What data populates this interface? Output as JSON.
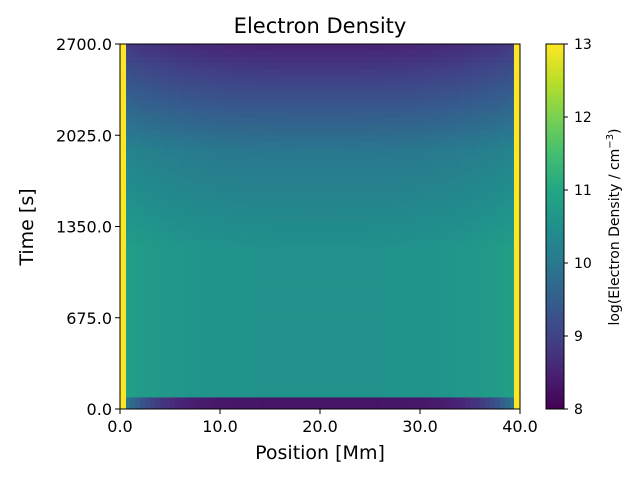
{
  "chart_data": {
    "type": "heatmap",
    "title": "Electron Density",
    "xlabel": "Position [Mm]",
    "ylabel": "Time [s]",
    "xlim": [
      0.0,
      40.0
    ],
    "ylim": [
      0.0,
      2700.0
    ],
    "x_ticks": [
      "0.0",
      "10.0",
      "20.0",
      "30.0",
      "40.0"
    ],
    "x_tick_values": [
      0,
      10,
      20,
      30,
      40
    ],
    "y_ticks": [
      "0.0",
      "675.0",
      "1350.0",
      "2025.0",
      "2700.0"
    ],
    "y_tick_values": [
      0,
      675,
      1350,
      2025,
      2700
    ],
    "colorbar": {
      "label_prefix": "log(Electron Density / cm",
      "label_sup": "−3",
      "label_suffix": ")",
      "range": [
        8,
        13
      ],
      "ticks": [
        "8",
        "9",
        "10",
        "11",
        "12",
        "13"
      ],
      "tick_values": [
        8,
        9,
        10,
        11,
        12,
        13
      ],
      "colormap": "viridis"
    },
    "field_description_values": {
      "footpoint_value": 13.0,
      "early_phase": {
        "t_range": [
          90,
          1200
        ],
        "center_value": 10.55,
        "edge_value": 10.9
      },
      "late_phase_top": {
        "t": 2700,
        "center_value": 8.5,
        "edge_value": 8.9
      },
      "late_phase_mid": {
        "t": 1900,
        "center_value": 10.0,
        "edge_value": 10.3
      },
      "initial_band": {
        "t_range": [
          0,
          90
        ],
        "center_value": 8.3
      },
      "transition_time": 1220
    }
  }
}
